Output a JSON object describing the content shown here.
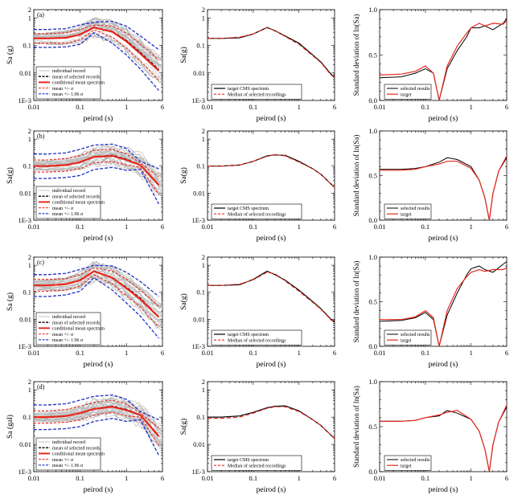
{
  "colors": {
    "individual": "#b5b5b5",
    "mean_selected": "#000000",
    "conditional_mean": "#e8281e",
    "mean_sigma": "#e8281e",
    "mean_196": "#2030c8",
    "target": "#000000",
    "median": "#e8281e"
  },
  "chart_data": [
    {
      "type": "line",
      "row": 1,
      "panel_label": "(a)",
      "xlabel": "peirod (s)",
      "ylabel": "Sa (g)",
      "yscale": "log",
      "x": [
        0.01,
        0.02,
        0.05,
        0.1,
        0.2,
        0.5,
        1,
        2,
        5
      ],
      "series": [
        {
          "name": "mean of selected records",
          "values": [
            0.18,
            0.18,
            0.19,
            0.25,
            0.45,
            0.32,
            0.15,
            0.055,
            0.013
          ]
        },
        {
          "name": "conditional mean spectrum",
          "values": [
            0.18,
            0.18,
            0.19,
            0.25,
            0.45,
            0.31,
            0.14,
            0.05,
            0.012
          ]
        },
        {
          "name": "mean +/- σ",
          "values": [
            0.27,
            0.27,
            0.29,
            0.38,
            0.55,
            0.5,
            0.28,
            0.11,
            0.03
          ]
        },
        {
          "name": "mean +/- σ",
          "values": [
            0.12,
            0.12,
            0.12,
            0.16,
            0.37,
            0.2,
            0.08,
            0.027,
            0.0055
          ]
        },
        {
          "name": "mean +/- 1.96 σ",
          "values": [
            0.38,
            0.38,
            0.41,
            0.56,
            0.7,
            0.75,
            0.5,
            0.22,
            0.07
          ]
        },
        {
          "name": "mean +/- 1.96 σ",
          "values": [
            0.085,
            0.085,
            0.088,
            0.11,
            0.29,
            0.12,
            0.045,
            0.014,
            0.0023
          ]
        }
      ],
      "yticks": [
        "2",
        "1",
        "0.1",
        "0.01",
        "1E-3"
      ],
      "xticks": [
        "0.01",
        "0.1",
        "1",
        "6"
      ],
      "legend": [
        "individual record",
        "mean of selected records",
        "conditional mean spectrum",
        "mean +/- σ",
        "mean +/- 1.96 σ"
      ],
      "legend_position": "bottom-left"
    },
    {
      "type": "line",
      "row": 1,
      "xlabel": "peirod (s)",
      "ylabel": "Sa(g)",
      "yscale": "log",
      "x": [
        0.01,
        0.02,
        0.05,
        0.1,
        0.2,
        0.3,
        0.5,
        1,
        2,
        3,
        5,
        6
      ],
      "series": [
        {
          "name": "target CMS spectrum",
          "values": [
            0.18,
            0.18,
            0.19,
            0.26,
            0.45,
            0.34,
            0.22,
            0.12,
            0.045,
            0.025,
            0.009,
            0.007
          ]
        },
        {
          "name": "Median of selected recordings",
          "values": [
            0.18,
            0.18,
            0.2,
            0.26,
            0.44,
            0.35,
            0.21,
            0.11,
            0.042,
            0.024,
            0.0085,
            0.0068
          ]
        }
      ],
      "yticks": [
        "2",
        "1",
        "0.1",
        "0.01",
        "1E-3"
      ],
      "xticks": [
        "0.01",
        "0.1",
        "1",
        "6"
      ],
      "legend_position": "bottom-left"
    },
    {
      "type": "line",
      "row": 1,
      "xlabel": "peirod (s)",
      "ylabel": "Standard deviation of ln(Sa)",
      "yscale": "linear",
      "x": [
        0.01,
        0.03,
        0.06,
        0.1,
        0.15,
        0.2,
        0.3,
        0.5,
        0.8,
        1,
        1.5,
        2,
        3,
        5,
        6
      ],
      "series": [
        {
          "name": "selected results",
          "values": [
            0.25,
            0.26,
            0.3,
            0.35,
            0.3,
            0.0,
            0.35,
            0.55,
            0.7,
            0.8,
            0.8,
            0.82,
            0.78,
            0.85,
            0.9
          ]
        },
        {
          "name": "target",
          "values": [
            0.28,
            0.29,
            0.32,
            0.38,
            0.3,
            0.0,
            0.38,
            0.6,
            0.74,
            0.8,
            0.85,
            0.82,
            0.85,
            0.84,
            0.88
          ]
        }
      ],
      "yticks": [
        "0.0",
        "0.5",
        "1.0"
      ],
      "xticks": [
        "0.01",
        "0.1",
        "1",
        "6"
      ],
      "legend": [
        "selected results",
        "target"
      ],
      "legend_position": "bottom-right"
    },
    {
      "type": "line",
      "row": 2,
      "panel_label": "(b)",
      "xlabel": "peirod (s)",
      "ylabel": "Sa(g)",
      "yscale": "log",
      "x": [
        0.01,
        0.02,
        0.05,
        0.1,
        0.2,
        0.5,
        1,
        2,
        5
      ],
      "series": [
        {
          "name": "mean of selected records",
          "values": [
            0.1,
            0.1,
            0.11,
            0.14,
            0.22,
            0.25,
            0.18,
            0.11,
            0.02
          ]
        },
        {
          "name": "conditional mean spectrum",
          "values": [
            0.1,
            0.1,
            0.11,
            0.14,
            0.22,
            0.24,
            0.17,
            0.11,
            0.02
          ]
        },
        {
          "name": "mean +/- σ",
          "values": [
            0.17,
            0.17,
            0.19,
            0.25,
            0.38,
            0.42,
            0.28,
            0.13,
            0.04
          ]
        },
        {
          "name": "mean +/- σ",
          "values": [
            0.06,
            0.06,
            0.065,
            0.08,
            0.13,
            0.15,
            0.11,
            0.09,
            0.009
          ]
        },
        {
          "name": "mean +/- 1.96 σ",
          "values": [
            0.28,
            0.28,
            0.31,
            0.42,
            0.6,
            0.65,
            0.45,
            0.15,
            0.08
          ]
        },
        {
          "name": "mean +/- 1.96 σ",
          "values": [
            0.035,
            0.035,
            0.038,
            0.045,
            0.075,
            0.09,
            0.07,
            0.075,
            0.004
          ]
        }
      ],
      "yticks": [
        "2",
        "1",
        "0.1",
        "0.01",
        "1E-3"
      ],
      "xticks": [
        "0.01",
        "0.1",
        "1",
        "6"
      ],
      "legend": [
        "individual record",
        "mean of selected records",
        "conditional mean spectrum",
        "mean +/- σ",
        "mean +/- 1.96 σ"
      ],
      "legend_position": "bottom-left"
    },
    {
      "type": "line",
      "row": 2,
      "xlabel": "peirod (s)",
      "ylabel": "Sa(g)",
      "yscale": "log",
      "x": [
        0.01,
        0.02,
        0.05,
        0.1,
        0.2,
        0.3,
        0.5,
        1,
        2,
        3,
        5,
        6
      ],
      "series": [
        {
          "name": "target CMS spectrum",
          "values": [
            0.1,
            0.1,
            0.11,
            0.15,
            0.24,
            0.26,
            0.25,
            0.15,
            0.08,
            0.05,
            0.022,
            0.016
          ]
        },
        {
          "name": "Median of selected recordings",
          "values": [
            0.1,
            0.1,
            0.11,
            0.15,
            0.23,
            0.27,
            0.24,
            0.14,
            0.08,
            0.05,
            0.022,
            0.016
          ]
        }
      ],
      "yticks": [
        "2",
        "1",
        "0.1",
        "0.01",
        "1E-3"
      ],
      "xticks": [
        "0.01",
        "0.1",
        "1",
        "6"
      ],
      "legend_position": "bottom-left"
    },
    {
      "type": "line",
      "row": 2,
      "xlabel": "peirod (s)",
      "ylabel": "Standard deviation of ln(Sa)",
      "yscale": "linear",
      "x": [
        0.01,
        0.03,
        0.06,
        0.1,
        0.2,
        0.3,
        0.5,
        1,
        1.5,
        2,
        2.5,
        3,
        4,
        6
      ],
      "series": [
        {
          "name": "selected results",
          "values": [
            0.57,
            0.57,
            0.58,
            0.6,
            0.65,
            0.7,
            0.68,
            0.6,
            0.45,
            0.25,
            0.0,
            0.3,
            0.55,
            0.7
          ]
        },
        {
          "name": "target",
          "values": [
            0.56,
            0.56,
            0.57,
            0.6,
            0.63,
            0.66,
            0.66,
            0.58,
            0.45,
            0.25,
            0.0,
            0.3,
            0.55,
            0.72
          ]
        }
      ],
      "yticks": [
        "0.0",
        "0.5",
        "1.0"
      ],
      "xticks": [
        "0.01",
        "0.1",
        "1",
        "6"
      ],
      "legend": [
        "selected results",
        "target"
      ],
      "legend_position": "bottom-right"
    },
    {
      "type": "line",
      "row": 3,
      "panel_label": "(c)",
      "xlabel": "peirod (s)",
      "ylabel": "Sa (g)",
      "yscale": "log",
      "x": [
        0.01,
        0.02,
        0.05,
        0.1,
        0.2,
        0.5,
        1,
        2,
        5
      ],
      "series": [
        {
          "name": "mean of selected records",
          "values": [
            0.18,
            0.18,
            0.2,
            0.28,
            0.6,
            0.35,
            0.15,
            0.06,
            0.012
          ]
        },
        {
          "name": "conditional mean spectrum",
          "values": [
            0.18,
            0.18,
            0.2,
            0.28,
            0.6,
            0.34,
            0.14,
            0.055,
            0.012
          ]
        },
        {
          "name": "mean +/- σ",
          "values": [
            0.3,
            0.3,
            0.32,
            0.45,
            0.8,
            0.6,
            0.3,
            0.12,
            0.03
          ]
        },
        {
          "name": "mean +/- σ",
          "values": [
            0.11,
            0.11,
            0.12,
            0.17,
            0.45,
            0.2,
            0.075,
            0.028,
            0.005
          ]
        },
        {
          "name": "mean +/- 1.96 σ",
          "values": [
            0.45,
            0.45,
            0.5,
            0.7,
            1.0,
            0.95,
            0.55,
            0.25,
            0.07
          ]
        },
        {
          "name": "mean +/- 1.96 σ",
          "values": [
            0.07,
            0.07,
            0.08,
            0.11,
            0.35,
            0.12,
            0.04,
            0.013,
            0.002
          ]
        }
      ],
      "yticks": [
        "2",
        "1",
        "0.1",
        "0.01",
        "1E-3"
      ],
      "xticks": [
        "0.01",
        "0.1",
        "1",
        "6"
      ],
      "legend": [
        "individual record",
        "mean of selected records",
        "conditional mean spectrum",
        "mean +/- σ",
        "mean +/- 1.96 σ"
      ],
      "legend_position": "bottom-left"
    },
    {
      "type": "line",
      "row": 3,
      "xlabel": "peirod (s)",
      "ylabel": "Sa(g)",
      "yscale": "log",
      "x": [
        0.01,
        0.02,
        0.05,
        0.1,
        0.2,
        0.3,
        0.5,
        1,
        2,
        3,
        5,
        6
      ],
      "series": [
        {
          "name": "target CMS spectrum",
          "values": [
            0.18,
            0.18,
            0.19,
            0.3,
            0.6,
            0.45,
            0.28,
            0.12,
            0.045,
            0.025,
            0.01,
            0.008
          ]
        },
        {
          "name": "Median of selected recordings",
          "values": [
            0.18,
            0.18,
            0.2,
            0.29,
            0.55,
            0.48,
            0.26,
            0.11,
            0.042,
            0.024,
            0.0095,
            0.0078
          ]
        }
      ],
      "yticks": [
        "2",
        "1",
        "0.1",
        "0.01",
        "1E-3"
      ],
      "xticks": [
        "0.01",
        "0.1",
        "1",
        "6"
      ],
      "legend_position": "bottom-left"
    },
    {
      "type": "line",
      "row": 3,
      "xlabel": "peirod (s)",
      "ylabel": "Standard deviation of ln(Sa)",
      "yscale": "linear",
      "x": [
        0.01,
        0.03,
        0.06,
        0.1,
        0.15,
        0.2,
        0.3,
        0.5,
        0.8,
        1,
        1.5,
        2,
        3,
        5,
        6
      ],
      "series": [
        {
          "name": "selected results",
          "values": [
            0.28,
            0.29,
            0.32,
            0.38,
            0.3,
            0.0,
            0.35,
            0.6,
            0.8,
            0.87,
            0.9,
            0.86,
            0.83,
            0.92,
            0.95
          ]
        },
        {
          "name": "target",
          "values": [
            0.3,
            0.3,
            0.33,
            0.4,
            0.32,
            0.0,
            0.4,
            0.65,
            0.78,
            0.83,
            0.86,
            0.84,
            0.86,
            0.86,
            0.88
          ]
        }
      ],
      "yticks": [
        "0.0",
        "0.5",
        "1.0"
      ],
      "xticks": [
        "0.01",
        "0.1",
        "1",
        "6"
      ],
      "legend": [
        "selected results",
        "target"
      ],
      "legend_position": "bottom-right"
    },
    {
      "type": "line",
      "row": 4,
      "panel_label": "(d)",
      "xlabel": "peirod (s)",
      "ylabel": "Sa (gal)",
      "yscale": "log",
      "x": [
        0.01,
        0.02,
        0.05,
        0.1,
        0.2,
        0.5,
        1,
        2,
        5
      ],
      "series": [
        {
          "name": "mean of selected records",
          "values": [
            0.1,
            0.1,
            0.11,
            0.14,
            0.2,
            0.25,
            0.19,
            0.12,
            0.02
          ]
        },
        {
          "name": "conditional mean spectrum",
          "values": [
            0.1,
            0.1,
            0.11,
            0.14,
            0.2,
            0.24,
            0.18,
            0.12,
            0.02
          ]
        },
        {
          "name": "mean +/- σ",
          "values": [
            0.17,
            0.17,
            0.19,
            0.25,
            0.35,
            0.42,
            0.3,
            0.14,
            0.04
          ]
        },
        {
          "name": "mean +/- σ",
          "values": [
            0.06,
            0.06,
            0.065,
            0.08,
            0.12,
            0.15,
            0.11,
            0.1,
            0.009
          ]
        },
        {
          "name": "mean +/- 1.96 σ",
          "values": [
            0.28,
            0.28,
            0.31,
            0.42,
            0.58,
            0.65,
            0.45,
            0.16,
            0.08
          ]
        },
        {
          "name": "mean +/- 1.96 σ",
          "values": [
            0.035,
            0.035,
            0.038,
            0.045,
            0.07,
            0.09,
            0.07,
            0.08,
            0.004
          ]
        }
      ],
      "yticks": [
        "2",
        "1",
        "0.1",
        "0.01",
        "1E-3"
      ],
      "xticks": [
        "0.01",
        "0.1",
        "1",
        "6"
      ],
      "legend": [
        "individual record",
        "mean of selected records",
        "conditional mean spectrum",
        "mean +/- σ",
        "mean +/- 1.96 σ"
      ],
      "legend_position": "bottom-left"
    },
    {
      "type": "line",
      "row": 4,
      "xlabel": "peirod (s)",
      "ylabel": "Sa(g)",
      "yscale": "log",
      "x": [
        0.01,
        0.02,
        0.05,
        0.1,
        0.2,
        0.3,
        0.5,
        1,
        2,
        3,
        5,
        6
      ],
      "series": [
        {
          "name": "target CMS spectrum",
          "values": [
            0.1,
            0.1,
            0.11,
            0.15,
            0.22,
            0.25,
            0.26,
            0.17,
            0.08,
            0.05,
            0.022,
            0.016
          ]
        },
        {
          "name": "Median of selected recordings",
          "values": [
            0.09,
            0.09,
            0.1,
            0.14,
            0.21,
            0.24,
            0.24,
            0.16,
            0.08,
            0.05,
            0.022,
            0.016
          ]
        }
      ],
      "yticks": [
        "2",
        "1",
        "0.1",
        "0.01",
        "1E-3"
      ],
      "xticks": [
        "0.01",
        "0.1",
        "1",
        "6"
      ],
      "legend_position": "bottom-left"
    },
    {
      "type": "line",
      "row": 4,
      "xlabel": "peirod (s)",
      "ylabel": "Standard deviation of ln(Sa)",
      "yscale": "linear",
      "x": [
        0.01,
        0.03,
        0.06,
        0.1,
        0.2,
        0.3,
        0.5,
        1,
        1.5,
        2,
        2.5,
        3,
        4,
        6
      ],
      "series": [
        {
          "name": "selected results",
          "values": [
            0.56,
            0.56,
            0.57,
            0.6,
            0.62,
            0.68,
            0.65,
            0.58,
            0.45,
            0.25,
            0.0,
            0.3,
            0.55,
            0.72
          ]
        },
        {
          "name": "target",
          "values": [
            0.56,
            0.56,
            0.57,
            0.6,
            0.63,
            0.66,
            0.68,
            0.58,
            0.45,
            0.25,
            0.0,
            0.3,
            0.55,
            0.74
          ]
        }
      ],
      "yticks": [
        "0.0",
        "0.5",
        "1.0"
      ],
      "xticks": [
        "0.01",
        "0.1",
        "1",
        "6"
      ],
      "legend": [
        "selected results",
        "target"
      ],
      "legend_position": "bottom-right"
    }
  ],
  "target_legend": [
    "target CMS spectrum",
    "Median of selected recordings"
  ]
}
